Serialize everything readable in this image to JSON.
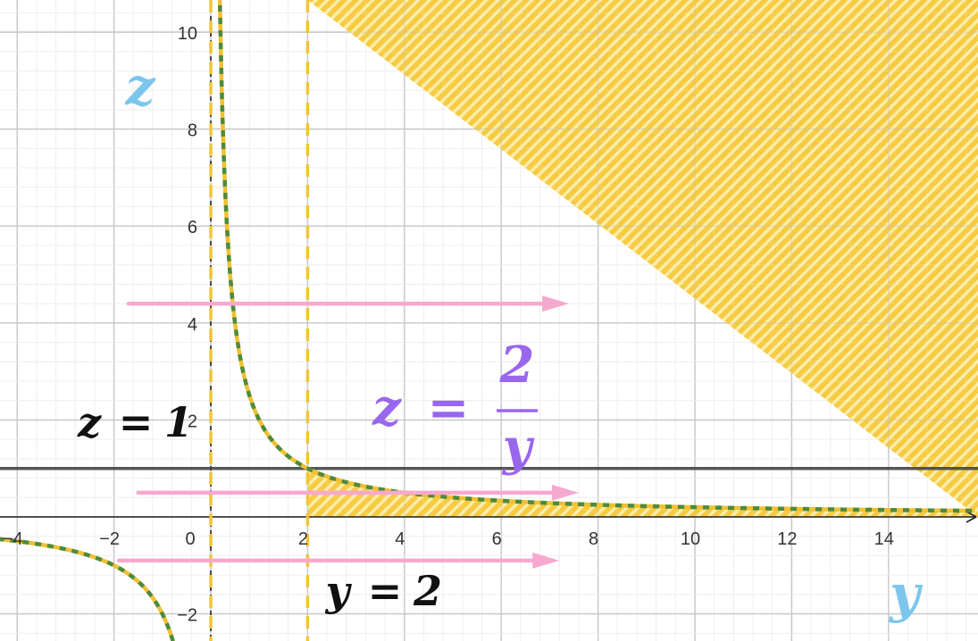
{
  "chart_data": {
    "type": "line",
    "title": "",
    "xlabel": "y",
    "ylabel": "z",
    "xlim": [
      -4.3,
      15.7
    ],
    "ylim": [
      -2.55,
      10.7
    ],
    "grid": true,
    "x_ticks": [
      {
        "value": -4,
        "label": "−4"
      },
      {
        "value": -2,
        "label": "−2"
      },
      {
        "value": 0,
        "label": "0"
      },
      {
        "value": 2,
        "label": "2"
      },
      {
        "value": 4,
        "label": "4"
      },
      {
        "value": 6,
        "label": "6"
      },
      {
        "value": 8,
        "label": "8"
      },
      {
        "value": 10,
        "label": "10"
      },
      {
        "value": 12,
        "label": "12"
      },
      {
        "value": 14,
        "label": "14"
      }
    ],
    "y_ticks": [
      {
        "value": -2,
        "label": "−2"
      },
      {
        "value": 2,
        "label": "2"
      },
      {
        "value": 4,
        "label": "4"
      },
      {
        "value": 6,
        "label": "6"
      },
      {
        "value": 8,
        "label": "8"
      },
      {
        "value": 10,
        "label": "10"
      }
    ],
    "series": [
      {
        "name": "z = 2/y",
        "function": "2/y",
        "color": "#4e8a3e",
        "style": "dashed",
        "dash_color": "#f0c030"
      },
      {
        "name": "z = 1",
        "constant": 1,
        "color": "#444444",
        "style": "solid"
      },
      {
        "name": "y = 2",
        "vertical": 2,
        "color": "#f2c537",
        "style": "dashed"
      }
    ],
    "asymptote": {
      "y": 0,
      "color": "#f2c537",
      "style": "dashed"
    },
    "shaded_region": {
      "description": "y >= 2, z >= 2/y",
      "y_min": 2,
      "color": "#f5c730",
      "pattern": "diagonal-hatch"
    },
    "arrows": [
      {
        "z": 4.4,
        "from": -1.7,
        "to": 7.4
      },
      {
        "z": 0.5,
        "from": -1.5,
        "to": 7.6
      },
      {
        "z": -0.9,
        "from": -1.9,
        "to": 7.2
      }
    ],
    "arrow_color": "#f7a8cf",
    "annotations": {
      "z_eq_1": {
        "lhs": "z",
        "eq": "=",
        "rhs": "1",
        "color": "#111111"
      },
      "y_eq_2": {
        "lhs": "y",
        "eq": "=",
        "rhs": "2",
        "color": "#111111"
      },
      "z_eq_2_over_y": {
        "lhs": "z",
        "eq": "=",
        "numerator": "2",
        "denominator": "y",
        "color": "#9966ee"
      }
    },
    "axis_letter_color": "#7cc6ee"
  }
}
